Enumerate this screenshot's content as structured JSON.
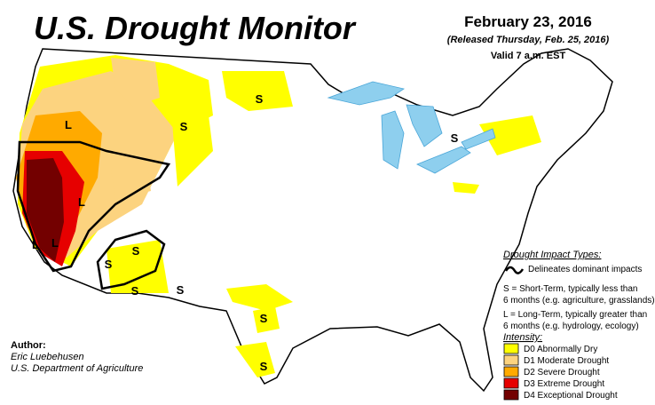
{
  "header": {
    "title": "U.S. Drought Monitor",
    "date": "February 23, 2016",
    "released": "(Released Thursday, Feb. 25, 2016)",
    "valid": "Valid 7 a.m. EST"
  },
  "impact": {
    "heading": "Drought Impact Types:",
    "delineates": "Delineates dominant impacts",
    "short_term": [
      "S = Short-Term, typically less than",
      "6 months (e.g. agriculture, grasslands)"
    ],
    "long_term": [
      "L = Long-Term, typically greater than",
      "6 months (e.g. hydrology, ecology)"
    ]
  },
  "intensity": {
    "heading": "Intensity:",
    "items": [
      {
        "label": "D0 Abnormally Dry",
        "color": "#ffff00"
      },
      {
        "label": "D1 Moderate Drought",
        "color": "#fcd37f"
      },
      {
        "label": "D2 Severe Drought",
        "color": "#ffaa00"
      },
      {
        "label": "D3 Extreme Drought",
        "color": "#e60000"
      },
      {
        "label": "D4 Exceptional Drought",
        "color": "#730000"
      }
    ]
  },
  "author": {
    "heading": "Author:",
    "name": "Eric Luebehusen",
    "org": "U.S. Department of Agriculture"
  },
  "map_labels": [
    "L",
    "L",
    "L",
    "S",
    "S",
    "S",
    "S",
    "S",
    "S",
    "S",
    "S",
    "S",
    "L"
  ]
}
